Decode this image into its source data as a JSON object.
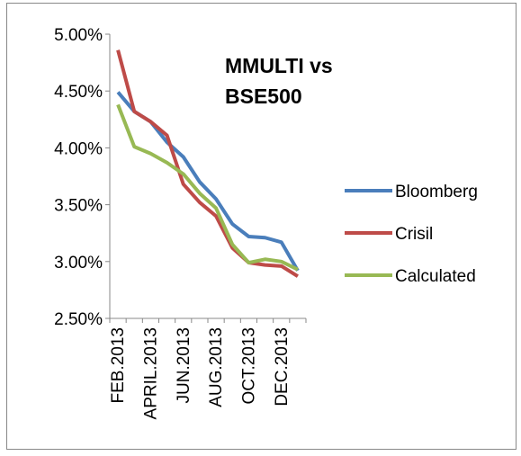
{
  "chart_data": {
    "type": "line",
    "title": "MMULTI vs BSE500",
    "categories": [
      "FEB.2013",
      null,
      "APRIL.2013",
      null,
      "JUN.2013",
      null,
      "AUG.2013",
      null,
      "OCT.2013",
      null,
      "DEC.2013",
      null
    ],
    "series": [
      {
        "name": "Bloomberg",
        "color": "#4a7ebb",
        "values": [
          4.49,
          4.32,
          4.23,
          4.05,
          3.92,
          3.7,
          3.55,
          3.33,
          3.22,
          3.21,
          3.17,
          2.92
        ]
      },
      {
        "name": "Crisil",
        "color": "#be4b48",
        "values": [
          4.86,
          4.32,
          4.23,
          4.11,
          3.68,
          3.52,
          3.4,
          3.12,
          2.99,
          2.97,
          2.96,
          2.87
        ]
      },
      {
        "name": "Calculated",
        "color": "#98b954",
        "values": [
          4.38,
          4.01,
          3.95,
          3.87,
          3.77,
          3.6,
          3.47,
          3.15,
          2.99,
          3.02,
          3.0,
          2.93
        ]
      }
    ],
    "ylim": [
      2.5,
      5
    ],
    "yticks": [
      {
        "value": 2.5,
        "label": "2.50%"
      },
      {
        "value": 3,
        "label": "3.00%"
      },
      {
        "value": 3.5,
        "label": "3.50%"
      },
      {
        "value": 4,
        "label": "4.00%"
      },
      {
        "value": 4.5,
        "label": "4.50%"
      },
      {
        "value": 5,
        "label": "5.00%"
      }
    ],
    "grid": false,
    "legend": "right"
  }
}
